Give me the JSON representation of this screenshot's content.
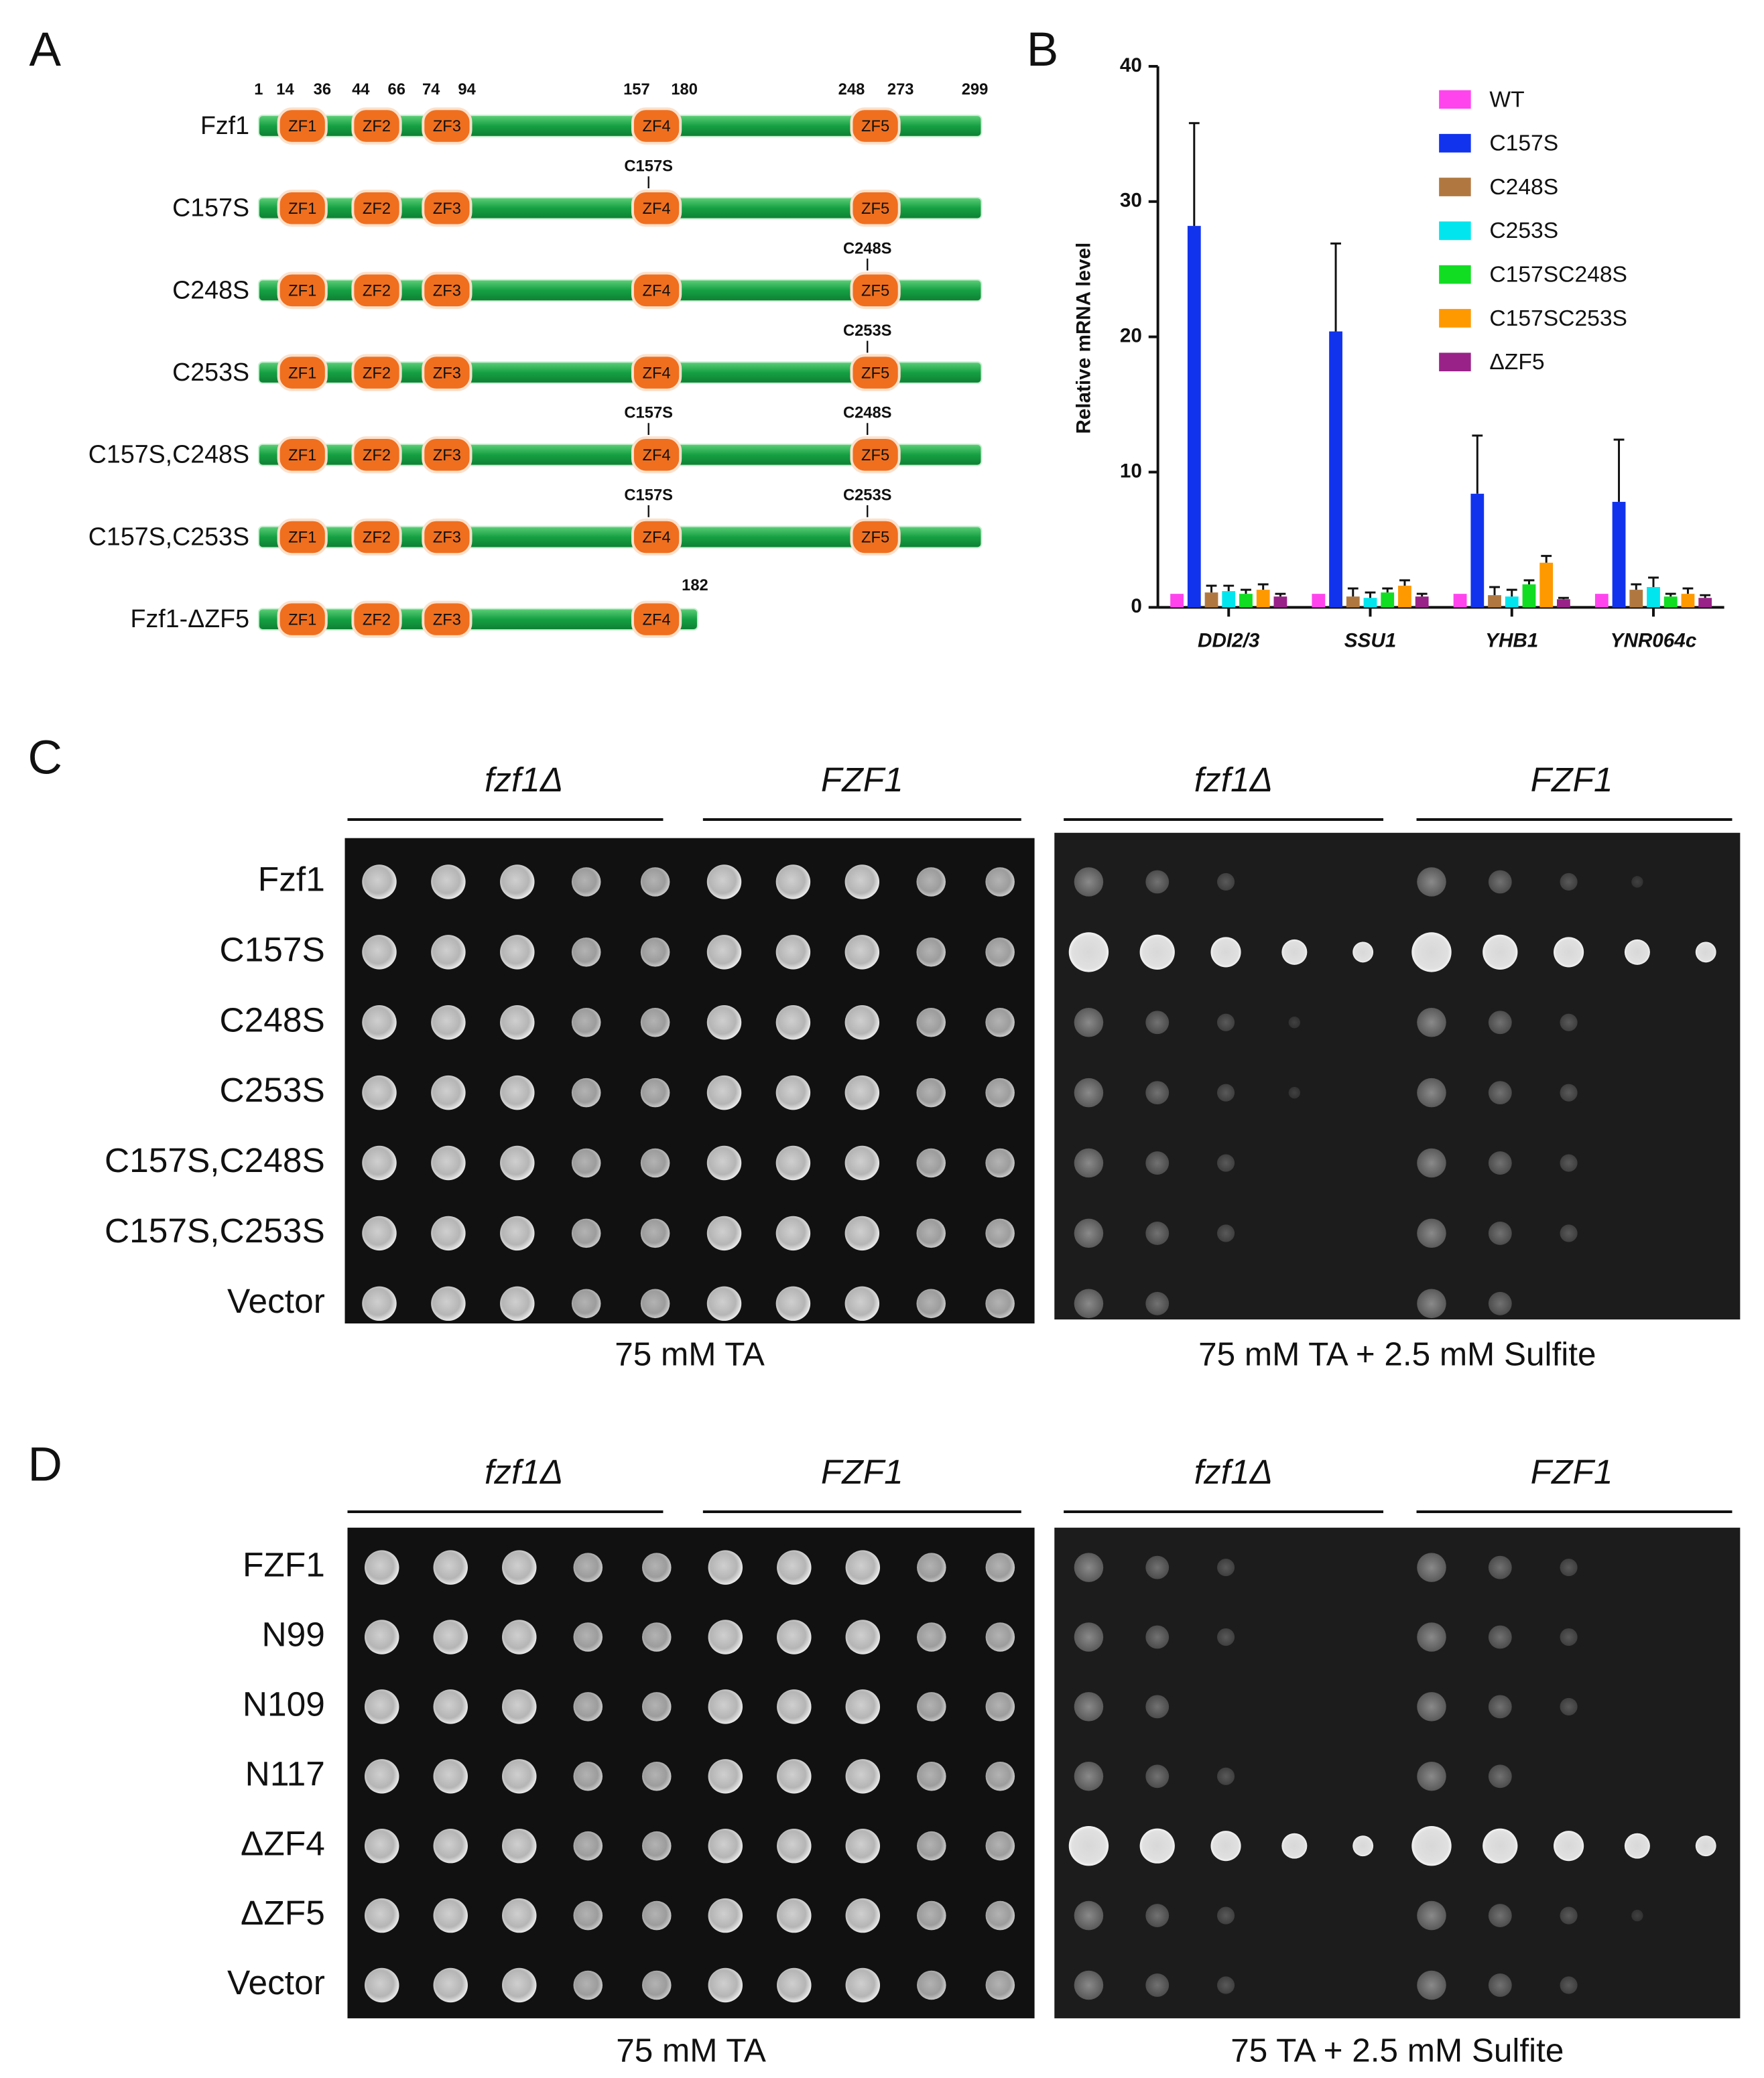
{
  "panel_labels": [
    "A",
    "B",
    "C",
    "D"
  ],
  "domain_diagram": {
    "positions": [
      1,
      14,
      36,
      44,
      66,
      74,
      94,
      157,
      180,
      248,
      273,
      299
    ],
    "constructs": [
      {
        "name": "Fzf1",
        "domains": [
          "ZF1",
          "ZF2",
          "ZF3",
          "ZF4",
          "ZF5"
        ],
        "mutations": {}
      },
      {
        "name": "C157S",
        "domains": [
          "ZF1",
          "ZF2",
          "ZF3",
          "ZF4",
          "ZF5"
        ],
        "mutations": {
          "ZF4": "C157S"
        }
      },
      {
        "name": "C248S",
        "domains": [
          "ZF1",
          "ZF2",
          "ZF3",
          "ZF4",
          "ZF5"
        ],
        "mutations": {
          "ZF5": "C248S"
        }
      },
      {
        "name": "C253S",
        "domains": [
          "ZF1",
          "ZF2",
          "ZF3",
          "ZF4",
          "ZF5"
        ],
        "mutations": {
          "ZF5": "C253S"
        }
      },
      {
        "name": "C157S,C248S",
        "domains": [
          "ZF1",
          "ZF2",
          "ZF3",
          "ZF4",
          "ZF5"
        ],
        "mutations": {
          "ZF4": "C157S",
          "ZF5": "C248S"
        }
      },
      {
        "name": "C157S,C253S",
        "domains": [
          "ZF1",
          "ZF2",
          "ZF3",
          "ZF4",
          "ZF5"
        ],
        "mutations": {
          "ZF4": "C157S",
          "ZF5": "C253S"
        }
      },
      {
        "name": "Fzf1-ΔZF5",
        "domains": [
          "ZF1",
          "ZF2",
          "ZF3",
          "ZF4"
        ],
        "mutations": {},
        "end": 182
      }
    ]
  },
  "chart_data": {
    "type": "bar",
    "y_label": "Relative mRNA level",
    "categories": [
      "DDI2/3",
      "SSU1",
      "YHB1",
      "YNR064c"
    ],
    "ylim": [
      0,
      40
    ],
    "yticks": [
      0,
      10,
      20,
      30,
      40
    ],
    "legend": "top-right",
    "series": [
      {
        "name": "WT",
        "color": "#ff44ee",
        "values": [
          1,
          1,
          1,
          1
        ],
        "errors": [
          0,
          0,
          0,
          0
        ]
      },
      {
        "name": "C157S",
        "color": "#1133ee",
        "values": [
          28.2,
          20.4,
          8.4,
          7.8
        ],
        "errors": [
          7.6,
          6.5,
          4.3,
          4.6
        ]
      },
      {
        "name": "C248S",
        "color": "#b07840",
        "values": [
          1.1,
          0.8,
          0.9,
          1.3
        ],
        "errors": [
          0.5,
          0.6,
          0.6,
          0.4
        ]
      },
      {
        "name": "C253S",
        "color": "#00e5ee",
        "values": [
          1.2,
          0.7,
          0.8,
          1.5
        ],
        "errors": [
          0.4,
          0.4,
          0.5,
          0.7
        ]
      },
      {
        "name": "C157SC248S",
        "color": "#11dd22",
        "values": [
          1.0,
          1.1,
          1.7,
          0.8
        ],
        "errors": [
          0.3,
          0.3,
          0.3,
          0.2
        ]
      },
      {
        "name": "C157SC253S",
        "color": "#ff9900",
        "values": [
          1.3,
          1.6,
          3.3,
          1.0
        ],
        "errors": [
          0.4,
          0.4,
          0.5,
          0.4
        ]
      },
      {
        "name": "ΔZF5",
        "color": "#992288",
        "values": [
          0.8,
          0.8,
          0.6,
          0.7
        ],
        "errors": [
          0.2,
          0.2,
          0.1,
          0.2
        ]
      }
    ]
  },
  "spot_assays": [
    {
      "rows": [
        "Fzf1",
        "C157S",
        "C248S",
        "C253S",
        "C157S,C248S",
        "C157S,C253S",
        "Vector"
      ],
      "plates": [
        {
          "groups": [
            "fzf1Δ",
            "FZF1"
          ],
          "condition": "75 mM TA"
        },
        {
          "groups": [
            "fzf1Δ",
            "FZF1"
          ],
          "condition": "75 mM TA + 2.5 mM Sulfite"
        }
      ]
    },
    {
      "rows": [
        "FZF1",
        "N99",
        "N109",
        "N117",
        "ΔZF4",
        "ΔZF5",
        "Vector"
      ],
      "plates": [
        {
          "groups": [
            "fzf1Δ",
            "FZF1"
          ],
          "condition": "75 mM TA"
        },
        {
          "groups": [
            "fzf1Δ",
            "FZF1"
          ],
          "condition": "75 TA + 2.5 mM Sulfite"
        }
      ]
    }
  ]
}
